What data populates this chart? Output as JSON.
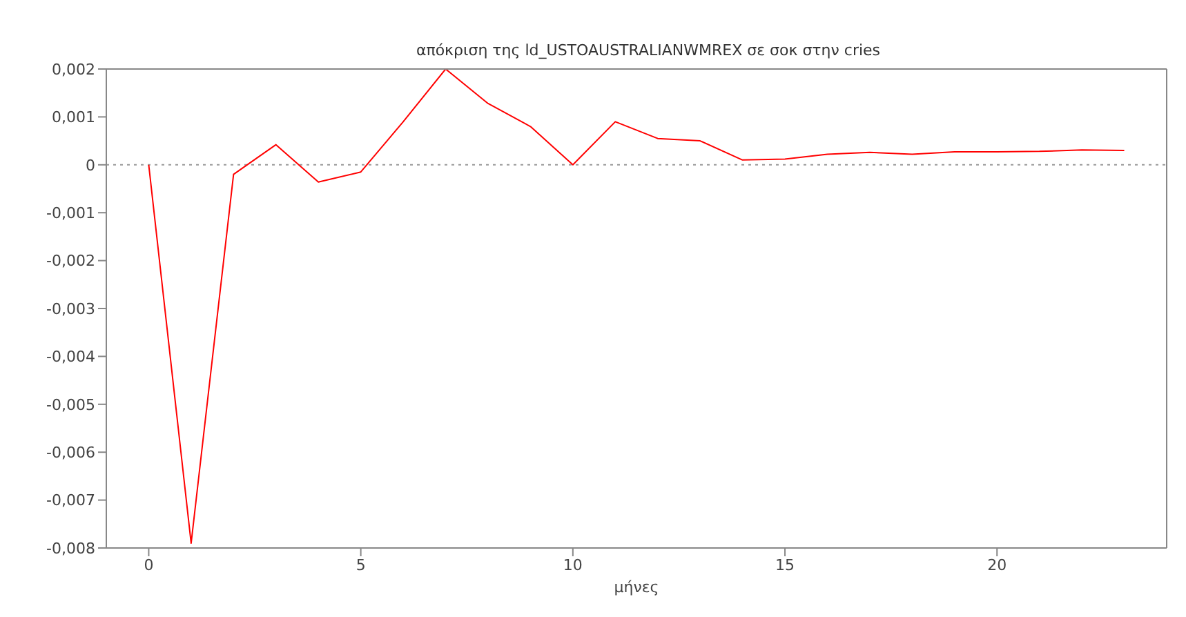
{
  "chart_data": {
    "type": "line",
    "title": "απόκριση της ld_USTOAUSTRALIANWMREX σε σοκ στην cries",
    "xlabel": "μήνες",
    "x": [
      0,
      1,
      2,
      3,
      4,
      5,
      6,
      7,
      8,
      9,
      10,
      11,
      12,
      13,
      14,
      15,
      16,
      17,
      18,
      19,
      20,
      21,
      22,
      23
    ],
    "series": [
      {
        "color": "#ff0000",
        "values": [
          0,
          -0.0079,
          -0.0002,
          0.00042,
          -0.00036,
          -0.00015,
          0.0009,
          0.002,
          0.00128,
          0.0008,
          0,
          0.0009,
          0.00055,
          0.0005,
          0.0001,
          0.00012,
          0.00022,
          0.00026,
          0.00022,
          0.00027,
          0.00027,
          0.00028,
          0.00031,
          0.0003
        ]
      }
    ],
    "xlim": [
      -1,
      24
    ],
    "xticks": [
      0,
      5,
      10,
      15,
      20
    ],
    "ylim": [
      -0.008,
      0.002
    ],
    "yticks": [
      {
        "value": 0.002,
        "label": "0,002"
      },
      {
        "value": 0.001,
        "label": "0,001"
      },
      {
        "value": 0,
        "label": "0"
      },
      {
        "value": -0.001,
        "label": "-0,001"
      },
      {
        "value": -0.002,
        "label": "-0,002"
      },
      {
        "value": -0.003,
        "label": "-0,003"
      },
      {
        "value": -0.004,
        "label": "-0,004"
      },
      {
        "value": -0.005,
        "label": "-0,005"
      },
      {
        "value": -0.006,
        "label": "-0,006"
      },
      {
        "value": -0.007,
        "label": "-0,007"
      },
      {
        "value": -0.008,
        "label": "-0,008"
      }
    ],
    "ref_lines": [
      {
        "axis": "y",
        "value": 0,
        "color": "#999999",
        "line_style": "dotted"
      }
    ],
    "grid": false,
    "legend": false,
    "marker": "none",
    "line_style": "solid"
  }
}
